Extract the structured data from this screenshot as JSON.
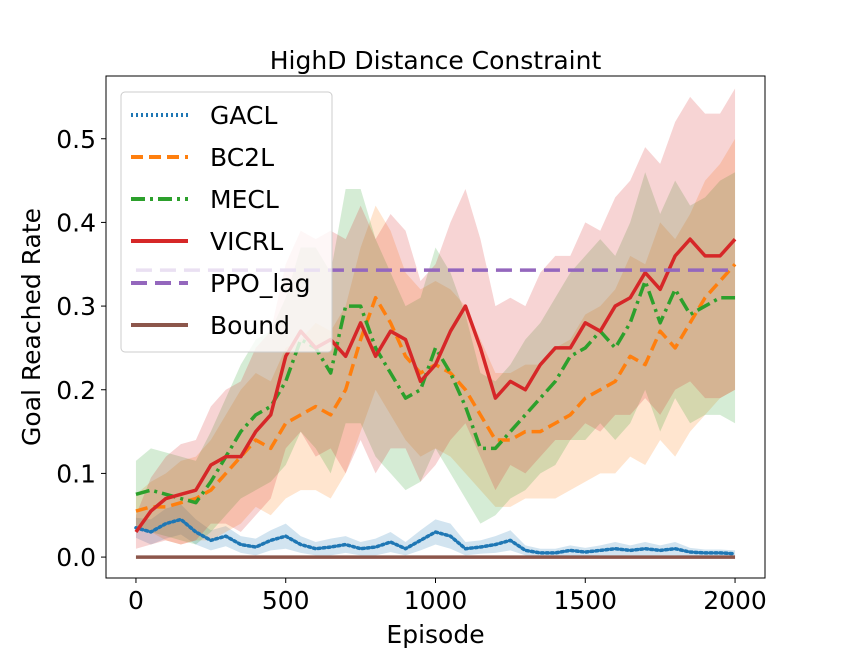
{
  "chart_data": {
    "type": "line",
    "title": "HighD Distance Constraint",
    "xlabel": "Episode",
    "ylabel": "Goal Reached Rate",
    "xlim": [
      -100,
      2100
    ],
    "ylim": [
      -0.025,
      0.575
    ],
    "xticks": [
      0,
      500,
      1000,
      1500,
      2000
    ],
    "yticks": [
      0.0,
      0.1,
      0.2,
      0.3,
      0.4,
      0.5
    ],
    "legend": "top-left",
    "grid": false,
    "series": [
      {
        "name": "GACL",
        "color": "#1f77b4",
        "dash": "dotted",
        "x": [
          0,
          50,
          100,
          150,
          200,
          250,
          300,
          350,
          400,
          450,
          500,
          550,
          600,
          650,
          700,
          750,
          800,
          850,
          900,
          950,
          1000,
          1050,
          1100,
          1150,
          1200,
          1250,
          1300,
          1350,
          1400,
          1450,
          1500,
          1550,
          1600,
          1650,
          1700,
          1750,
          1800,
          1850,
          1900,
          1950,
          2000
        ],
        "y": [
          0.035,
          0.03,
          0.04,
          0.045,
          0.03,
          0.02,
          0.025,
          0.015,
          0.012,
          0.02,
          0.025,
          0.015,
          0.01,
          0.012,
          0.015,
          0.01,
          0.012,
          0.018,
          0.01,
          0.02,
          0.03,
          0.025,
          0.01,
          0.012,
          0.015,
          0.02,
          0.008,
          0.005,
          0.005,
          0.008,
          0.006,
          0.008,
          0.01,
          0.008,
          0.01,
          0.008,
          0.01,
          0.006,
          0.005,
          0.005,
          0.004
        ],
        "band": [
          0.012,
          0.015,
          0.018,
          0.018,
          0.015,
          0.012,
          0.012,
          0.01,
          0.01,
          0.012,
          0.015,
          0.01,
          0.008,
          0.01,
          0.01,
          0.008,
          0.01,
          0.012,
          0.008,
          0.012,
          0.015,
          0.015,
          0.008,
          0.008,
          0.01,
          0.012,
          0.006,
          0.005,
          0.005,
          0.006,
          0.005,
          0.006,
          0.008,
          0.006,
          0.008,
          0.006,
          0.008,
          0.005,
          0.004,
          0.004,
          0.004
        ]
      },
      {
        "name": "BC2L",
        "color": "#ff7f0e",
        "dash": "dashed",
        "x": [
          0,
          50,
          100,
          150,
          200,
          250,
          300,
          350,
          400,
          450,
          500,
          550,
          600,
          650,
          700,
          750,
          800,
          850,
          900,
          950,
          1000,
          1050,
          1100,
          1150,
          1200,
          1250,
          1300,
          1350,
          1400,
          1450,
          1500,
          1550,
          1600,
          1650,
          1700,
          1750,
          1800,
          1850,
          1900,
          1950,
          2000
        ],
        "y": [
          0.055,
          0.06,
          0.06,
          0.065,
          0.07,
          0.08,
          0.1,
          0.12,
          0.14,
          0.13,
          0.16,
          0.17,
          0.18,
          0.17,
          0.2,
          0.26,
          0.31,
          0.28,
          0.24,
          0.22,
          0.23,
          0.22,
          0.2,
          0.17,
          0.14,
          0.14,
          0.15,
          0.15,
          0.16,
          0.17,
          0.19,
          0.2,
          0.21,
          0.24,
          0.23,
          0.27,
          0.25,
          0.28,
          0.31,
          0.33,
          0.35
        ],
        "band": [
          0.02,
          0.03,
          0.04,
          0.05,
          0.05,
          0.06,
          0.07,
          0.08,
          0.08,
          0.08,
          0.09,
          0.09,
          0.1,
          0.1,
          0.1,
          0.11,
          0.11,
          0.11,
          0.1,
          0.1,
          0.1,
          0.1,
          0.1,
          0.09,
          0.08,
          0.08,
          0.08,
          0.08,
          0.09,
          0.09,
          0.1,
          0.1,
          0.11,
          0.12,
          0.12,
          0.13,
          0.13,
          0.13,
          0.14,
          0.14,
          0.15
        ]
      },
      {
        "name": "MECL",
        "color": "#2ca02c",
        "dash": "dashdot",
        "x": [
          0,
          50,
          100,
          150,
          200,
          250,
          300,
          350,
          400,
          450,
          500,
          550,
          600,
          650,
          700,
          750,
          800,
          850,
          900,
          950,
          1000,
          1050,
          1100,
          1150,
          1200,
          1250,
          1300,
          1350,
          1400,
          1450,
          1500,
          1550,
          1600,
          1650,
          1700,
          1750,
          1800,
          1850,
          1900,
          1950,
          2000
        ],
        "y": [
          0.075,
          0.08,
          0.075,
          0.07,
          0.065,
          0.09,
          0.12,
          0.15,
          0.17,
          0.18,
          0.21,
          0.26,
          0.25,
          0.22,
          0.3,
          0.3,
          0.25,
          0.22,
          0.19,
          0.2,
          0.25,
          0.22,
          0.18,
          0.13,
          0.13,
          0.15,
          0.17,
          0.19,
          0.21,
          0.24,
          0.25,
          0.27,
          0.25,
          0.28,
          0.33,
          0.28,
          0.32,
          0.29,
          0.3,
          0.31,
          0.31
        ],
        "band": [
          0.04,
          0.05,
          0.05,
          0.05,
          0.05,
          0.06,
          0.07,
          0.08,
          0.09,
          0.09,
          0.1,
          0.11,
          0.12,
          0.12,
          0.14,
          0.14,
          0.13,
          0.12,
          0.11,
          0.11,
          0.12,
          0.12,
          0.11,
          0.09,
          0.08,
          0.08,
          0.09,
          0.09,
          0.1,
          0.1,
          0.11,
          0.11,
          0.11,
          0.12,
          0.13,
          0.13,
          0.13,
          0.13,
          0.13,
          0.14,
          0.15
        ]
      },
      {
        "name": "VICRL",
        "color": "#d62728",
        "dash": "solid",
        "x": [
          0,
          50,
          100,
          150,
          200,
          250,
          300,
          350,
          400,
          450,
          500,
          550,
          600,
          650,
          700,
          750,
          800,
          850,
          900,
          950,
          1000,
          1050,
          1100,
          1150,
          1200,
          1250,
          1300,
          1350,
          1400,
          1450,
          1500,
          1550,
          1600,
          1650,
          1700,
          1750,
          1800,
          1850,
          1900,
          1950,
          2000
        ],
        "y": [
          0.03,
          0.055,
          0.07,
          0.075,
          0.08,
          0.11,
          0.12,
          0.12,
          0.15,
          0.17,
          0.24,
          0.27,
          0.25,
          0.26,
          0.24,
          0.28,
          0.24,
          0.27,
          0.26,
          0.21,
          0.23,
          0.27,
          0.3,
          0.25,
          0.19,
          0.21,
          0.2,
          0.23,
          0.25,
          0.25,
          0.28,
          0.27,
          0.3,
          0.31,
          0.34,
          0.32,
          0.36,
          0.38,
          0.36,
          0.36,
          0.38
        ],
        "band": [
          0.02,
          0.04,
          0.05,
          0.06,
          0.06,
          0.07,
          0.08,
          0.09,
          0.1,
          0.1,
          0.11,
          0.12,
          0.13,
          0.13,
          0.14,
          0.14,
          0.14,
          0.14,
          0.13,
          0.12,
          0.12,
          0.13,
          0.14,
          0.13,
          0.11,
          0.1,
          0.1,
          0.11,
          0.11,
          0.11,
          0.12,
          0.12,
          0.13,
          0.14,
          0.15,
          0.15,
          0.16,
          0.17,
          0.17,
          0.17,
          0.18
        ]
      },
      {
        "name": "PPO_lag",
        "color": "#9467bd",
        "dash": "longdash",
        "x": [
          0,
          2000
        ],
        "y": [
          0.343,
          0.343
        ]
      },
      {
        "name": "Bound",
        "color": "#8c564b",
        "dash": "solid",
        "x": [
          0,
          2000
        ],
        "y": [
          0.0,
          0.0
        ]
      }
    ]
  }
}
